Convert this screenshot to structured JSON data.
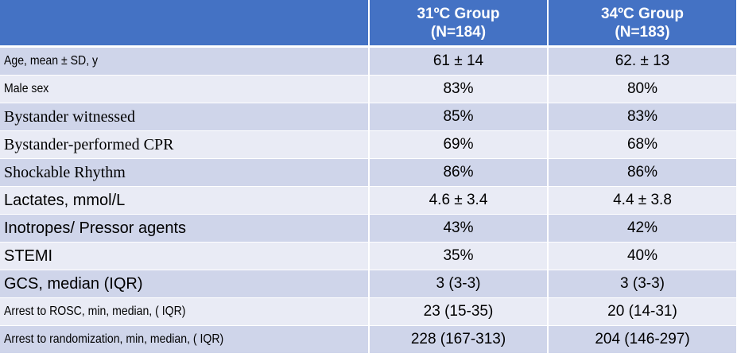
{
  "header": {
    "col1_line1": "31ºC Group",
    "col1_line2": "(N=184)",
    "col2_line1": "34ºC Group",
    "col2_line2": "(N=183)"
  },
  "rows": [
    {
      "label": "Age, mean ± SD, y",
      "g31": "61 ± 14",
      "g34": "62. ± 13"
    },
    {
      "label": "Male sex",
      "g31": "83%",
      "g34": "80%"
    },
    {
      "label": "Bystander witnessed",
      "g31": "85%",
      "g34": "83%"
    },
    {
      "label": "Bystander-performed CPR",
      "g31": "69%",
      "g34": "68%"
    },
    {
      "label": "Shockable Rhythm",
      "g31": "86%",
      "g34": "86%"
    },
    {
      "label": "Lactates, mmol/L",
      "g31": "4.6 ± 3.4",
      "g34": "4.4 ± 3.8"
    },
    {
      "label": "Inotropes/ Pressor agents",
      "g31": "43%",
      "g34": "42%"
    },
    {
      "label": "STEMI",
      "g31": "35%",
      "g34": "40%"
    },
    {
      "label": "GCS, median (IQR)",
      "g31": "3 (3-3)",
      "g34": "3 (3-3)"
    },
    {
      "label": "Arrest to ROSC, min, median, ( IQR)",
      "g31": "23 (15-35)",
      "g34": "20 (14-31)"
    },
    {
      "label": "Arrest to randomization, min, median, ( IQR)",
      "g31": "228 (167-313)",
      "g34": "204 (146-297)"
    }
  ],
  "colors": {
    "header_bg": "#4472c4",
    "row_dark": "#cfd5ea",
    "row_light": "#e9ebf5"
  }
}
